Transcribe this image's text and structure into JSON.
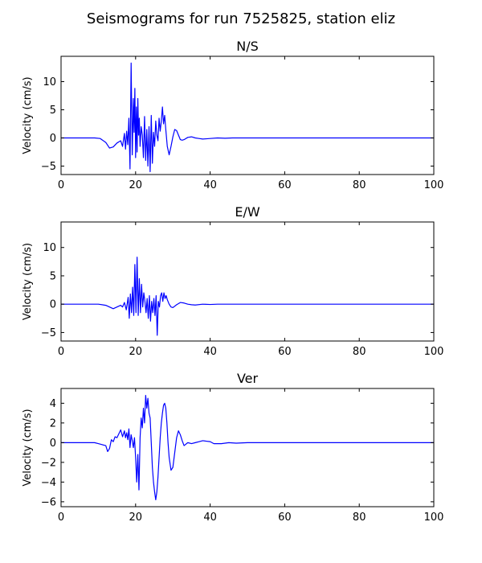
{
  "figure": {
    "title": "Seismograms for run 7525825, station eliz"
  },
  "chart_data": [
    {
      "type": "line",
      "title": "N/S",
      "xlabel": "",
      "ylabel": "Velocity (cm/s)",
      "xlim": [
        0,
        100
      ],
      "ylim": [
        -6.5,
        14.5
      ],
      "xticks": [
        0,
        20,
        40,
        60,
        80,
        100
      ],
      "yticks": [
        -5,
        0,
        5,
        10
      ],
      "color": "#0000ff",
      "series": [
        {
          "x": [
            0,
            9,
            10.5,
            12,
            13,
            14,
            15,
            16,
            16.5,
            17,
            17.3,
            17.6,
            17.9,
            18.2,
            18.5,
            18.8,
            19.1,
            19.4,
            19.6,
            19.8,
            20.0,
            20.2,
            20.4,
            20.6,
            20.8,
            21.0,
            21.2,
            21.5,
            21.8,
            22.1,
            22.4,
            22.7,
            23.0,
            23.3,
            23.6,
            23.9,
            24.2,
            24.5,
            24.8,
            25.1,
            25.4,
            25.7,
            26.0,
            26.3,
            26.6,
            26.9,
            27.2,
            27.5,
            27.8,
            28.1,
            28.5,
            29.0,
            29.5,
            30.0,
            30.5,
            31.0,
            31.5,
            32.0,
            32.5,
            33.0,
            34.0,
            35.0,
            36.0,
            37.0,
            38.0,
            39.0,
            40.0,
            42.0,
            44.0,
            46.0,
            48.0,
            50.0,
            100.0
          ],
          "y": [
            0,
            0,
            -0.1,
            -0.8,
            -1.8,
            -1.6,
            -0.9,
            -0.5,
            -1.5,
            0.8,
            -2.0,
            1.2,
            -1.2,
            3.5,
            -5.5,
            13.3,
            -3.0,
            7.0,
            1.0,
            8.8,
            -3.5,
            5.5,
            -2.5,
            7.0,
            0.5,
            3.5,
            -1.5,
            2.0,
            0.5,
            -3.5,
            3.8,
            -4.0,
            1.5,
            -5.0,
            2.0,
            -6.0,
            4.0,
            -4.5,
            1.0,
            -1.5,
            3.0,
            0.5,
            -0.5,
            3.5,
            1.2,
            3.0,
            5.5,
            2.5,
            4.0,
            1.5,
            -1.5,
            -3.0,
            -1.5,
            0.2,
            1.5,
            1.3,
            0.5,
            -0.3,
            -0.4,
            -0.3,
            0.1,
            0.2,
            0.0,
            -0.1,
            -0.2,
            -0.15,
            -0.1,
            0.0,
            -0.05,
            0.0,
            0.0,
            0.0,
            0.0
          ]
        }
      ]
    },
    {
      "type": "line",
      "title": "E/W",
      "xlabel": "",
      "ylabel": "Velocity (cm/s)",
      "xlim": [
        0,
        100
      ],
      "ylim": [
        -6.5,
        14.5
      ],
      "xticks": [
        0,
        20,
        40,
        60,
        80,
        100
      ],
      "yticks": [
        -5,
        0,
        5,
        10
      ],
      "color": "#0000ff",
      "series": [
        {
          "x": [
            0,
            10,
            12,
            13,
            14,
            15,
            16,
            16.5,
            17,
            17.5,
            18.0,
            18.3,
            18.6,
            18.9,
            19.2,
            19.5,
            19.8,
            20.1,
            20.4,
            20.7,
            21.0,
            21.3,
            21.6,
            21.9,
            22.2,
            22.5,
            22.8,
            23.1,
            23.4,
            23.7,
            24.0,
            24.3,
            24.6,
            24.9,
            25.2,
            25.5,
            25.8,
            26.1,
            26.4,
            26.7,
            27.0,
            27.3,
            27.6,
            27.9,
            28.2,
            28.5,
            29.0,
            29.5,
            30.0,
            31.0,
            32.0,
            33.0,
            34.0,
            35.0,
            36.0,
            38.0,
            40.0,
            42.0,
            44.0,
            100.0
          ],
          "y": [
            0,
            0,
            -0.2,
            -0.5,
            -0.8,
            -0.5,
            -0.2,
            -0.5,
            0.3,
            -1.0,
            1.2,
            -2.5,
            1.8,
            -1.5,
            3.0,
            -2.0,
            7.0,
            -1.5,
            8.3,
            -2.0,
            4.5,
            -1.5,
            3.5,
            -0.5,
            2.0,
            0.5,
            -1.5,
            1.0,
            -2.5,
            1.5,
            -3.0,
            0.5,
            -1.5,
            1.0,
            -2.0,
            1.5,
            -5.5,
            0.5,
            -0.5,
            1.5,
            2.0,
            0.5,
            2.0,
            1.0,
            1.5,
            0.8,
            0.0,
            -0.5,
            -0.6,
            -0.1,
            0.3,
            0.2,
            0.0,
            -0.1,
            -0.15,
            0.0,
            -0.05,
            0.0,
            0.0,
            0.0
          ]
        }
      ]
    },
    {
      "type": "line",
      "title": "Ver",
      "xlabel": "",
      "ylabel": "Velocity (cm/s)",
      "xlim": [
        0,
        100
      ],
      "ylim": [
        -6.5,
        5.5
      ],
      "xticks": [
        0,
        20,
        40,
        60,
        80,
        100
      ],
      "yticks": [
        -6,
        -4,
        -2,
        0,
        2,
        4
      ],
      "color": "#0000ff",
      "series": [
        {
          "x": [
            0,
            9,
            10,
            11,
            12,
            12.5,
            13,
            13.5,
            14,
            14.5,
            15,
            15.5,
            16,
            16.5,
            17,
            17.3,
            17.6,
            17.9,
            18.2,
            18.5,
            18.8,
            19.1,
            19.4,
            19.7,
            20.0,
            20.3,
            20.6,
            20.9,
            21.2,
            21.5,
            21.8,
            22.1,
            22.4,
            22.7,
            23.0,
            23.3,
            23.6,
            23.9,
            24.2,
            24.5,
            24.8,
            25.1,
            25.4,
            25.7,
            26.0,
            26.3,
            26.6,
            26.9,
            27.2,
            27.5,
            27.8,
            28.1,
            28.4,
            28.7,
            29.0,
            29.5,
            30.0,
            30.5,
            31.0,
            31.5,
            32.0,
            32.5,
            33.0,
            34.0,
            35.0,
            36.0,
            37.0,
            38.0,
            39.0,
            40.0,
            41.0,
            43.0,
            45.0,
            47.0,
            50.0,
            100.0
          ],
          "y": [
            0,
            0,
            -0.1,
            -0.2,
            -0.3,
            -0.9,
            -0.6,
            0.3,
            0.1,
            0.6,
            0.5,
            0.9,
            1.3,
            0.6,
            1.2,
            0.5,
            1.0,
            0.3,
            1.4,
            -0.5,
            0.8,
            0.2,
            -0.5,
            0.5,
            -1.5,
            -4.0,
            -1.2,
            -4.8,
            0.5,
            2.5,
            1.5,
            3.5,
            2.0,
            4.8,
            3.5,
            4.5,
            3.0,
            2.5,
            0.0,
            -2.5,
            -4.0,
            -5.0,
            -5.8,
            -5.0,
            -3.5,
            -1.5,
            0.5,
            2.0,
            3.0,
            3.8,
            4.0,
            3.5,
            2.0,
            0.0,
            -1.5,
            -2.8,
            -2.5,
            -1.0,
            0.5,
            1.2,
            0.8,
            0.2,
            -0.3,
            0.0,
            -0.1,
            0.0,
            0.1,
            0.2,
            0.15,
            0.1,
            -0.1,
            -0.1,
            0.0,
            -0.05,
            0.0,
            0.0
          ]
        }
      ]
    }
  ]
}
